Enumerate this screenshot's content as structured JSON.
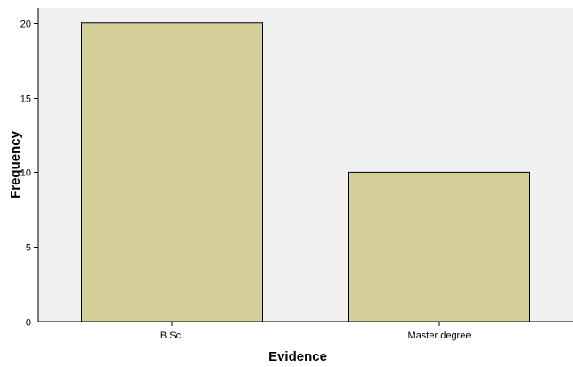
{
  "chart_data": {
    "type": "bar",
    "title": "",
    "xlabel": "Evidence",
    "ylabel": "Frequency",
    "categories": [
      "B.Sc.",
      "Master degree"
    ],
    "values": [
      20,
      10
    ],
    "ylim": [
      0,
      21
    ],
    "yticks": [
      0,
      5,
      10,
      15,
      20
    ],
    "grid": false,
    "legend": "none",
    "colors": {
      "bar_fill": "#d4cf99",
      "bar_stroke": "#000000",
      "plot_background": "#f0f0f0",
      "axis": "#000000"
    }
  }
}
